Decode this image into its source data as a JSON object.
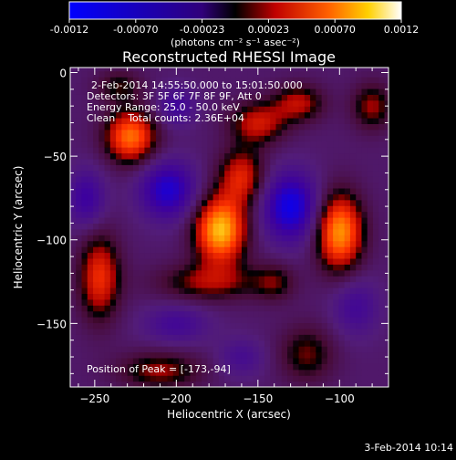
{
  "chart_data": {
    "type": "heatmap",
    "title": "Reconstructed RHESSI Image",
    "xlabel": "Heliocentric X (arcsec)",
    "ylabel": "Heliocentric Y (arcsec)",
    "xlim": [
      -265,
      -70
    ],
    "ylim": [
      -188,
      3
    ],
    "xticks": [
      -250,
      -200,
      -150,
      -100
    ],
    "yticks": [
      0,
      -50,
      -100,
      -150
    ],
    "colorbar": {
      "min": -0.0012,
      "max": 0.0012,
      "ticks": [
        "-0.0012",
        "-0.00070",
        "-0.00023",
        "0.00023",
        "0.00070",
        "0.0012"
      ],
      "units_label": "(photons cm⁻² s⁻¹ asec⁻²)"
    },
    "annotations": {
      "time_range": "2-Feb-2014 14:55:50.000 to 15:01:50.000",
      "detectors": "Detectors: 3F 5F 6F 7F 8F 9F, Att 0",
      "energy": "Energy Range: 25.0 - 50.0 keV",
      "clean": "Clean    Total counts: 2.36E+04",
      "peak": "Position of Peak = [-173,-94]"
    },
    "peak": {
      "x": -173,
      "y": -94
    },
    "blobs": [
      {
        "x": -173,
        "y": -94,
        "sx": 11,
        "sy": 14,
        "amp": 1.0
      },
      {
        "x": -160,
        "y": -62,
        "sx": 10,
        "sy": 12,
        "amp": 0.55
      },
      {
        "x": -150,
        "y": -30,
        "sx": 12,
        "sy": 9,
        "amp": 0.5
      },
      {
        "x": -125,
        "y": -18,
        "sx": 11,
        "sy": 8,
        "amp": 0.45
      },
      {
        "x": -180,
        "y": -125,
        "sx": 22,
        "sy": 8,
        "amp": 0.4
      },
      {
        "x": -228,
        "y": -38,
        "sx": 11,
        "sy": 11,
        "amp": 0.8
      },
      {
        "x": -235,
        "y": -8,
        "sx": 10,
        "sy": 7,
        "amp": 0.3
      },
      {
        "x": -247,
        "y": -122,
        "sx": 9,
        "sy": 18,
        "amp": 0.6
      },
      {
        "x": -210,
        "y": -178,
        "sx": 18,
        "sy": 8,
        "amp": 0.4
      },
      {
        "x": -100,
        "y": -95,
        "sx": 10,
        "sy": 16,
        "amp": 0.9
      },
      {
        "x": -80,
        "y": -20,
        "sx": 9,
        "sy": 10,
        "amp": 0.4
      },
      {
        "x": -120,
        "y": -168,
        "sx": 12,
        "sy": 12,
        "amp": 0.35
      },
      {
        "x": -140,
        "y": -125,
        "sx": 9,
        "sy": 8,
        "amp": 0.3
      },
      {
        "x": -205,
        "y": -70,
        "sx": 12,
        "sy": 12,
        "amp": -0.6
      },
      {
        "x": -130,
        "y": -80,
        "sx": 12,
        "sy": 14,
        "amp": -0.7
      },
      {
        "x": -255,
        "y": -75,
        "sx": 8,
        "sy": 12,
        "amp": -0.4
      },
      {
        "x": -200,
        "y": -20,
        "sx": 8,
        "sy": 8,
        "amp": -0.35
      },
      {
        "x": -200,
        "y": -150,
        "sx": 14,
        "sy": 8,
        "amp": -0.3
      },
      {
        "x": -90,
        "y": -140,
        "sx": 10,
        "sy": 12,
        "amp": -0.3
      },
      {
        "x": -160,
        "y": -170,
        "sx": 10,
        "sy": 8,
        "amp": -0.25
      }
    ]
  },
  "footer": {
    "date": "3-Feb-2014 10:14"
  }
}
